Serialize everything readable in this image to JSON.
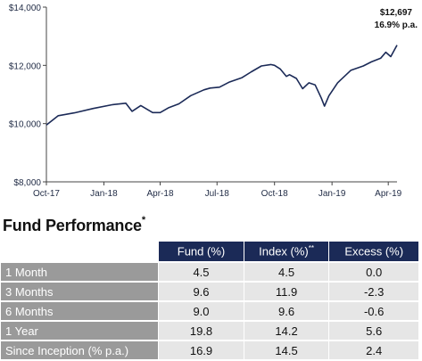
{
  "chart_data": {
    "type": "line",
    "ylim": [
      8000,
      14000
    ],
    "yticks": [
      "$8,000",
      "$10,000",
      "$12,000",
      "$14,000"
    ],
    "yticks_values": [
      8000,
      10000,
      12000,
      14000
    ],
    "xticks": [
      "Oct-17",
      "Jan-18",
      "Apr-18",
      "Jul-18",
      "Oct-18",
      "Jan-19",
      "Apr-19"
    ],
    "x": [
      "2017-10-01",
      "2017-10-20",
      "2017-11-15",
      "2017-12-15",
      "2018-01-15",
      "2018-02-05",
      "2018-02-15",
      "2018-03-01",
      "2018-03-20",
      "2018-04-01",
      "2018-04-15",
      "2018-05-01",
      "2018-05-20",
      "2018-06-10",
      "2018-06-20",
      "2018-07-05",
      "2018-07-20",
      "2018-08-10",
      "2018-08-25",
      "2018-09-10",
      "2018-09-25",
      "2018-10-01",
      "2018-10-10",
      "2018-10-20",
      "2018-10-25",
      "2018-11-05",
      "2018-11-15",
      "2018-11-25",
      "2018-12-05",
      "2018-12-15",
      "2018-12-20",
      "2018-12-27",
      "2019-01-10",
      "2019-01-31",
      "2019-02-20",
      "2019-03-05",
      "2019-03-20",
      "2019-03-28",
      "2019-04-05",
      "2019-04-15"
    ],
    "values": [
      9950,
      10270,
      10370,
      10520,
      10650,
      10700,
      10420,
      10620,
      10380,
      10380,
      10550,
      10680,
      10960,
      11160,
      11220,
      11250,
      11420,
      11580,
      11780,
      11980,
      12030,
      12000,
      11880,
      11620,
      11680,
      11550,
      11200,
      11400,
      11330,
      10870,
      10600,
      10950,
      11400,
      11830,
      11980,
      12120,
      12250,
      12450,
      12300,
      12697
    ],
    "annotation_value": "$12,697",
    "annotation_rate": "16.9% p.a.",
    "color": "#1b2a57",
    "grid": false
  },
  "table": {
    "title": "Fund Performance",
    "title_marker": "*",
    "headers": [
      {
        "text": "Fund (%)",
        "sup": ""
      },
      {
        "text": "Index (%)",
        "sup": "**"
      },
      {
        "text": "Excess (%)",
        "sup": ""
      }
    ],
    "rows": [
      {
        "label": "1 Month",
        "fund": "4.5",
        "index": "4.5",
        "excess": "0.0"
      },
      {
        "label": "3 Months",
        "fund": "9.6",
        "index": "11.9",
        "excess": "-2.3"
      },
      {
        "label": "6 Months",
        "fund": "9.0",
        "index": "9.6",
        "excess": "-0.6"
      },
      {
        "label": "1 Year",
        "fund": "19.8",
        "index": "14.2",
        "excess": "5.6"
      },
      {
        "label": "Since Inception (% p.a.)",
        "fund": "16.9",
        "index": "14.5",
        "excess": "2.4"
      }
    ]
  }
}
